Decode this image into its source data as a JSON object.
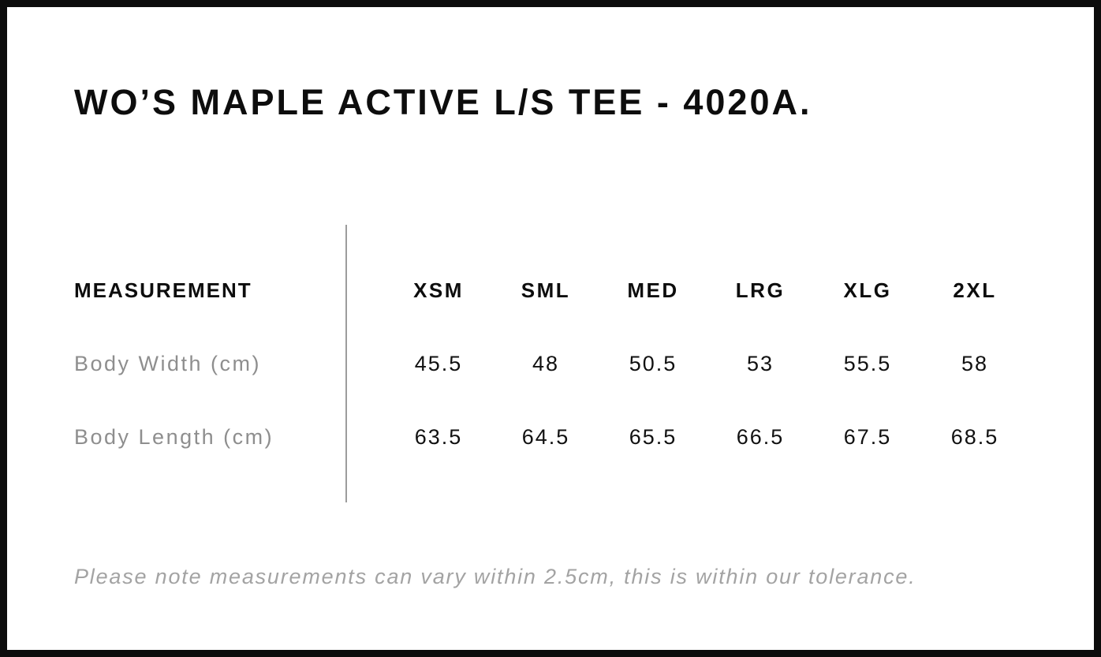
{
  "title": "WO’S MAPLE ACTIVE L/S TEE - 4020A.",
  "table": {
    "measurement_header": "MEASUREMENT",
    "size_headers": [
      "XSM",
      "SML",
      "MED",
      "LRG",
      "XLG",
      "2XL"
    ],
    "rows": [
      {
        "label": "Body Width (cm)",
        "values": [
          "45.5",
          "48",
          "50.5",
          "53",
          "55.5",
          "58"
        ]
      },
      {
        "label": "Body Length (cm)",
        "values": [
          "63.5",
          "64.5",
          "65.5",
          "66.5",
          "67.5",
          "68.5"
        ]
      }
    ]
  },
  "note": "Please note measurements can vary within 2.5cm, this is within our tolerance.",
  "colors": {
    "frame_border": "#0c0c0c",
    "text_primary": "#0d0d0d",
    "row_label_gray": "#8e8e8e",
    "note_gray": "#a3a3a3",
    "divider_gray": "#9c9c9c",
    "background": "#ffffff"
  },
  "chart_data": {
    "type": "table",
    "title": "WO’S MAPLE ACTIVE L/S TEE - 4020A.",
    "columns": [
      "MEASUREMENT",
      "XSM",
      "SML",
      "MED",
      "LRG",
      "XLG",
      "2XL"
    ],
    "rows": [
      [
        "Body Width (cm)",
        45.5,
        48,
        50.5,
        53,
        55.5,
        58
      ],
      [
        "Body Length (cm)",
        63.5,
        64.5,
        65.5,
        66.5,
        67.5,
        68.5
      ]
    ],
    "footnote": "Please note measurements can vary within 2.5cm, this is within our tolerance.",
    "layout_hints": {
      "label_column_divider": true,
      "grid": false,
      "units": "cm"
    }
  }
}
